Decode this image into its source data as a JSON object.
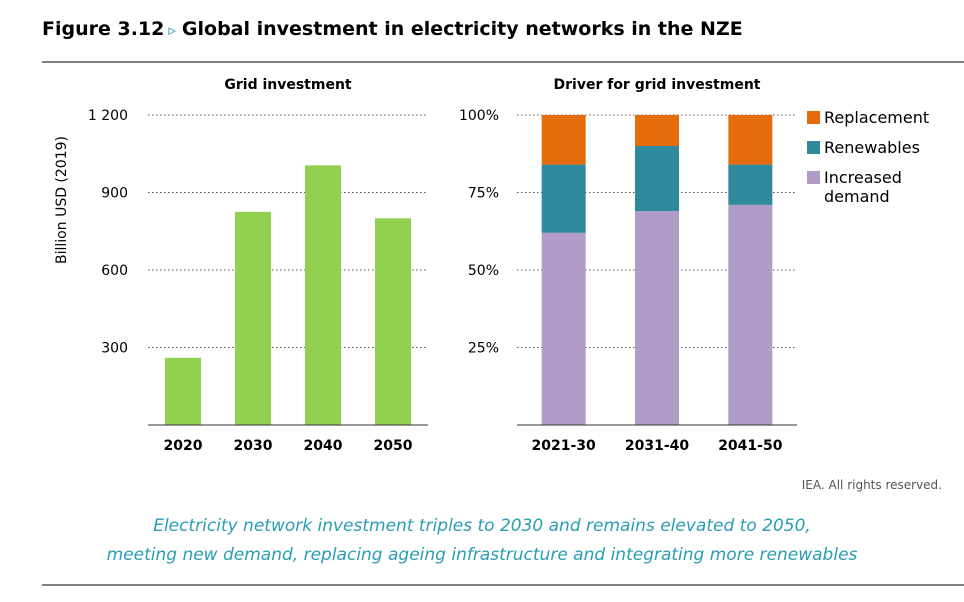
{
  "figure": {
    "label": "Figure 3.12",
    "arrow": "▹",
    "title": "Global investment in electricity networks in the NZE",
    "source": "IEA. All rights reserved.",
    "caption_line1": "Electricity network investment triples to 2030 and remains elevated to 2050,",
    "caption_line2": "meeting new demand, replacing ageing infrastructure and integrating more renewables"
  },
  "chart_data": [
    {
      "type": "bar",
      "title": "Grid investment",
      "ylabel": "Billion USD (2019)",
      "categories": [
        "2020",
        "2030",
        "2040",
        "2050"
      ],
      "values": [
        260,
        825,
        1005,
        800
      ],
      "ylim": [
        0,
        1200
      ],
      "yticks": [
        300,
        600,
        900,
        1200
      ],
      "ytick_labels": [
        "300",
        "600",
        "900",
        "1 200"
      ],
      "grid": true,
      "color": "#92d050"
    },
    {
      "type": "bar",
      "stacked": true,
      "title": "Driver for grid investment",
      "categories": [
        "2021-30",
        "2031-40",
        "2041-50"
      ],
      "series": [
        {
          "name": "Increased demand",
          "legend_lines": [
            "Increased",
            "demand"
          ],
          "values": [
            62,
            69,
            71
          ],
          "color": "#b19cc8"
        },
        {
          "name": "Renewables",
          "legend_lines": [
            "Renewables"
          ],
          "values": [
            22,
            21,
            13
          ],
          "color": "#2e8a9c"
        },
        {
          "name": "Replacement",
          "legend_lines": [
            "Replacement"
          ],
          "values": [
            16,
            10,
            16
          ],
          "color": "#e46c0a"
        }
      ],
      "ylim": [
        0,
        100
      ],
      "yticks": [
        25,
        50,
        75,
        100
      ],
      "ytick_labels": [
        "25%",
        "50%",
        "75%",
        "100%"
      ],
      "legend_position": "right",
      "grid": true
    }
  ]
}
